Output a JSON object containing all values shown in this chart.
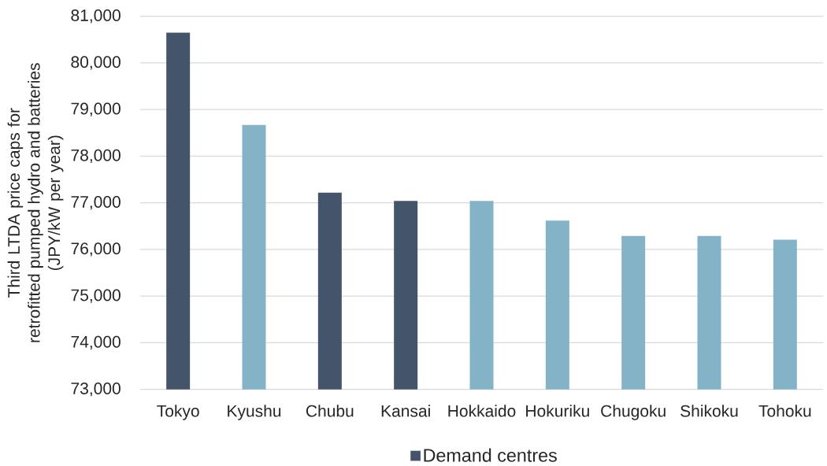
{
  "chart_data": {
    "type": "bar",
    "ylabel": "Third LTDA price caps for retrofitted pumped hydro and batteries (JPY/kW per year)",
    "categories": [
      "Tokyo",
      "Kyushu",
      "Chubu",
      "Kansai",
      "Hokkaido",
      "Hokuriku",
      "Chugoku",
      "Shikoku",
      "Tohoku"
    ],
    "series": [
      {
        "name": "Demand centres",
        "color": "#44546a",
        "values": [
          80650,
          null,
          77220,
          77040,
          null,
          null,
          null,
          null,
          null
        ]
      },
      {
        "color": "#84b3c8",
        "values": [
          null,
          78670,
          null,
          null,
          77040,
          76620,
          76290,
          76290,
          76210
        ]
      }
    ],
    "ylim": [
      73000,
      81000
    ],
    "yticks": [
      {
        "value": 73000,
        "label": "73,000"
      },
      {
        "value": 74000,
        "label": "74,000"
      },
      {
        "value": 75000,
        "label": "75,000"
      },
      {
        "value": 76000,
        "label": "76,000"
      },
      {
        "value": 77000,
        "label": "77,000"
      },
      {
        "value": 78000,
        "label": "78,000"
      },
      {
        "value": 79000,
        "label": "79,000"
      },
      {
        "value": 80000,
        "label": "80,000"
      },
      {
        "value": 81000,
        "label": "81,000"
      }
    ],
    "grid": "y",
    "legend": "bottom"
  }
}
